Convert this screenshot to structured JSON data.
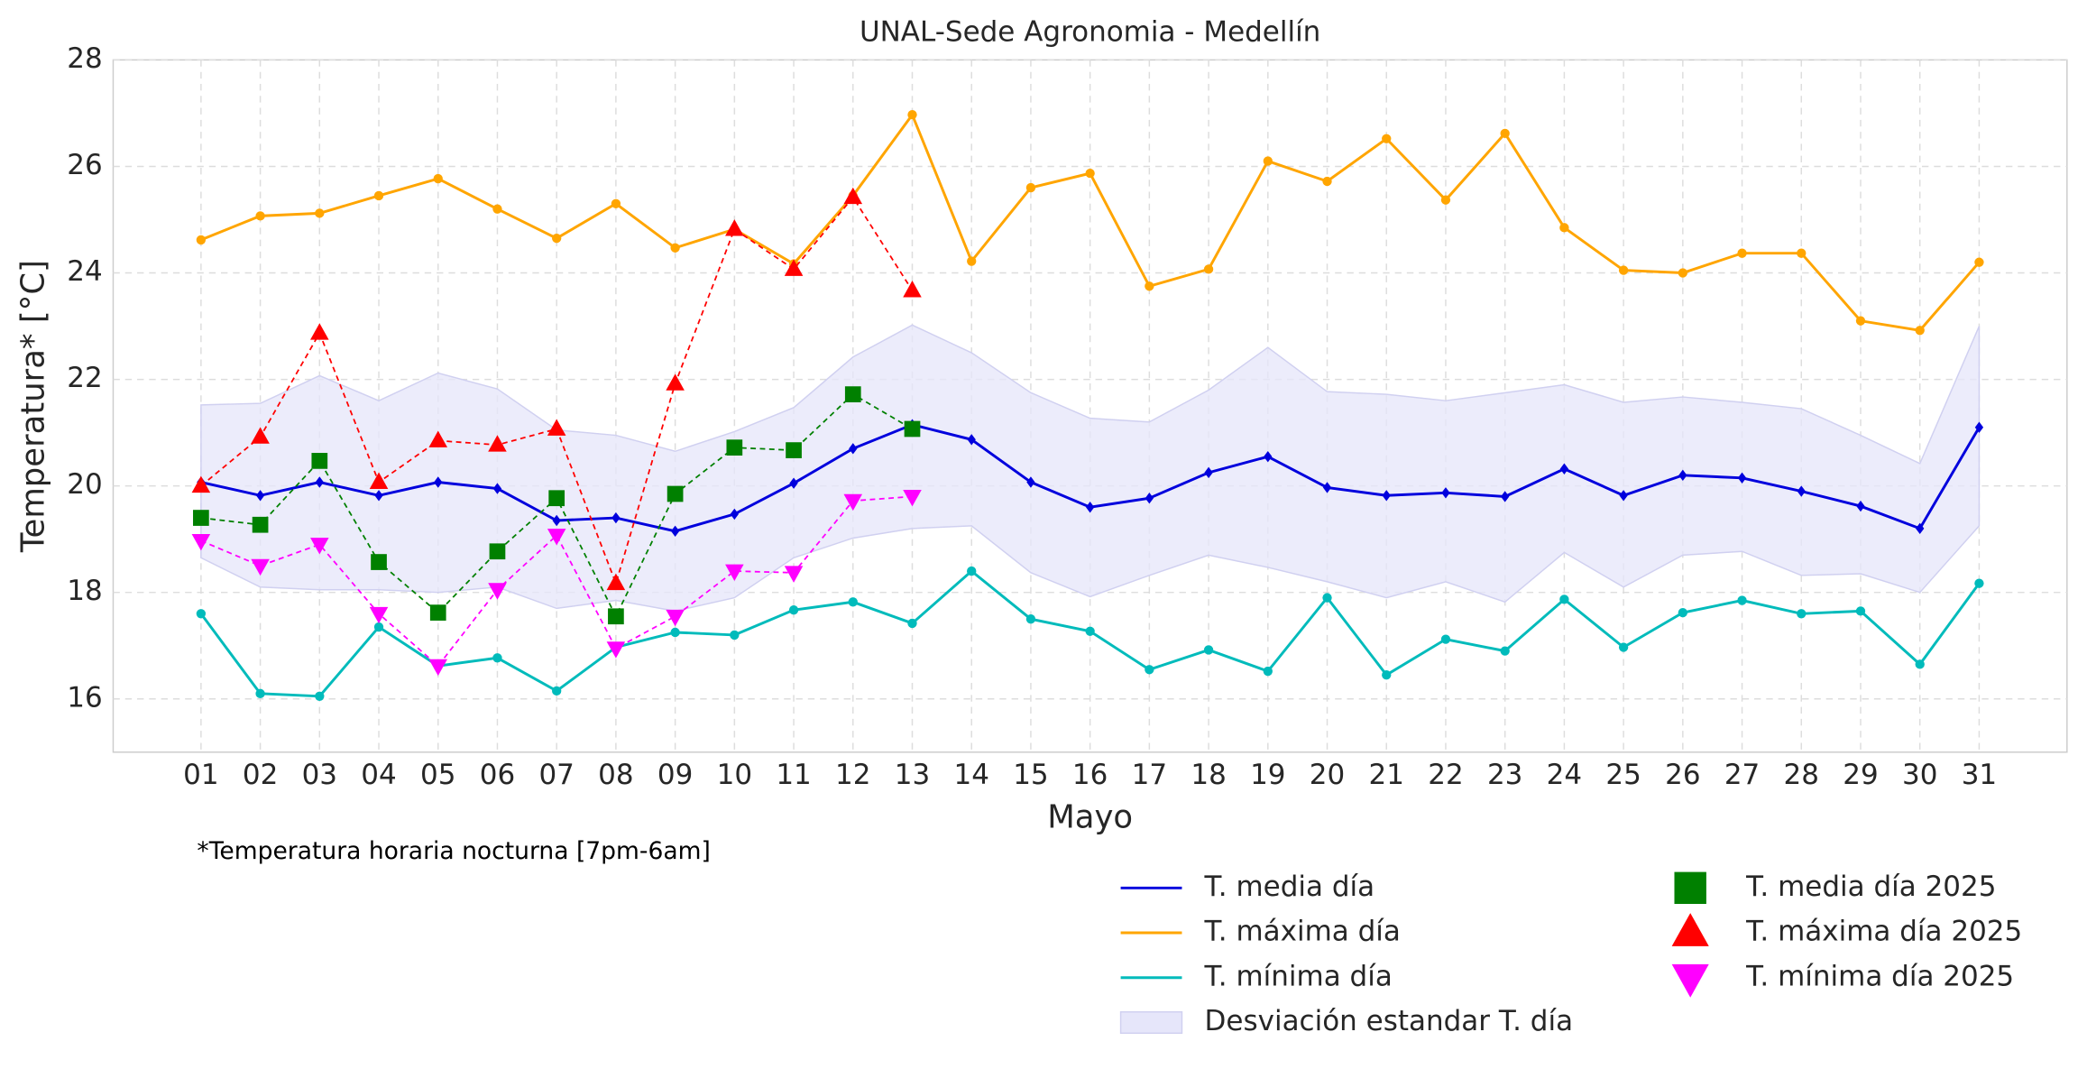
{
  "chart_data": {
    "type": "line",
    "title": "UNAL-Sede Agronomia - Medellín",
    "x_label": "Mayo",
    "y_label": "Temperatura* [°C]",
    "footnote": "*Temperatura horaria nocturna [7pm-6am]",
    "categories": [
      "01",
      "02",
      "03",
      "04",
      "05",
      "06",
      "07",
      "08",
      "09",
      "10",
      "11",
      "12",
      "13",
      "14",
      "15",
      "16",
      "17",
      "18",
      "19",
      "20",
      "21",
      "22",
      "23",
      "24",
      "25",
      "26",
      "27",
      "28",
      "29",
      "30",
      "31"
    ],
    "ylim": [
      15,
      28
    ],
    "yticks": [
      16,
      18,
      20,
      22,
      24,
      26,
      28
    ],
    "grid": true,
    "legend": "lower right",
    "band": {
      "name": "Desviación estandar T. día",
      "color": "#e6e6fa",
      "upper": [
        21.52,
        21.55,
        22.07,
        21.6,
        22.12,
        21.82,
        21.05,
        20.95,
        20.65,
        21.02,
        21.47,
        22.42,
        23.02,
        22.5,
        21.75,
        21.27,
        21.2,
        21.8,
        22.6,
        21.77,
        21.72,
        21.6,
        21.75,
        21.9,
        21.57,
        21.67,
        21.57,
        21.45,
        20.95,
        20.42,
        23.0
      ],
      "lower": [
        18.65,
        18.1,
        18.05,
        18.05,
        18.0,
        18.1,
        17.7,
        17.85,
        17.65,
        17.9,
        18.65,
        19.02,
        19.2,
        19.25,
        18.37,
        17.92,
        18.32,
        18.7,
        18.47,
        18.2,
        17.9,
        18.2,
        17.82,
        18.75,
        18.1,
        18.7,
        18.77,
        18.32,
        18.35,
        18.0,
        19.25
      ]
    },
    "series": [
      {
        "name": "T. media día",
        "color": "#0000dd",
        "linestyle": "solid",
        "marker": "diamond",
        "values": [
          20.07,
          19.82,
          20.07,
          19.82,
          20.07,
          19.95,
          19.35,
          19.4,
          19.15,
          19.47,
          20.05,
          20.7,
          21.15,
          20.87,
          20.07,
          19.6,
          19.77,
          20.25,
          20.55,
          19.97,
          19.82,
          19.87,
          19.8,
          20.32,
          19.82,
          20.2,
          20.15,
          19.9,
          19.62,
          19.2,
          21.1
        ]
      },
      {
        "name": "T. máxima día",
        "color": "#ffa500",
        "linestyle": "solid",
        "marker": "circle",
        "values": [
          24.62,
          25.07,
          25.12,
          25.45,
          25.77,
          25.2,
          24.65,
          25.3,
          24.47,
          24.82,
          24.17,
          25.45,
          26.97,
          24.22,
          25.6,
          25.87,
          23.75,
          24.07,
          26.1,
          25.72,
          26.52,
          25.37,
          26.62,
          24.85,
          24.05,
          24.0,
          24.37,
          24.37,
          23.1,
          22.92,
          24.2
        ]
      },
      {
        "name": "T. mínima día",
        "color": "#00bbbb",
        "linestyle": "solid",
        "marker": "circle",
        "values": [
          17.6,
          16.1,
          16.05,
          17.35,
          16.62,
          16.77,
          16.15,
          16.97,
          17.25,
          17.2,
          17.67,
          17.82,
          17.42,
          18.4,
          17.5,
          17.27,
          16.55,
          16.92,
          16.52,
          17.9,
          16.45,
          17.12,
          16.9,
          17.87,
          16.97,
          17.62,
          17.85,
          17.6,
          17.65,
          16.65,
          18.17
        ]
      },
      {
        "name": "T. media día 2025",
        "color": "#008000",
        "linestyle": "dashed",
        "marker": "square",
        "values": [
          19.4,
          19.27,
          20.47,
          18.57,
          17.62,
          18.77,
          19.77,
          17.55,
          19.85,
          20.72,
          20.67,
          21.72,
          21.07,
          null,
          null,
          null,
          null,
          null,
          null,
          null,
          null,
          null,
          null,
          null,
          null,
          null,
          null,
          null,
          null,
          null,
          null
        ]
      },
      {
        "name": "T. máxima día 2025",
        "color": "#ff0000",
        "linestyle": "dashed",
        "marker": "triangle-up",
        "values": [
          20.0,
          20.92,
          22.87,
          20.07,
          20.85,
          20.77,
          21.07,
          18.17,
          21.92,
          24.82,
          24.07,
          25.42,
          23.67,
          null,
          null,
          null,
          null,
          null,
          null,
          null,
          null,
          null,
          null,
          null,
          null,
          null,
          null,
          null,
          null,
          null,
          null
        ]
      },
      {
        "name": "T. mínima día 2025",
        "color": "#ff00ff",
        "linestyle": "dashed",
        "marker": "triangle-down",
        "values": [
          18.97,
          18.5,
          18.9,
          17.6,
          16.62,
          18.05,
          19.07,
          16.95,
          17.55,
          18.4,
          18.37,
          19.72,
          19.8,
          null,
          null,
          null,
          null,
          null,
          null,
          null,
          null,
          null,
          null,
          null,
          null,
          null,
          null,
          null,
          null,
          null,
          null
        ]
      }
    ]
  }
}
